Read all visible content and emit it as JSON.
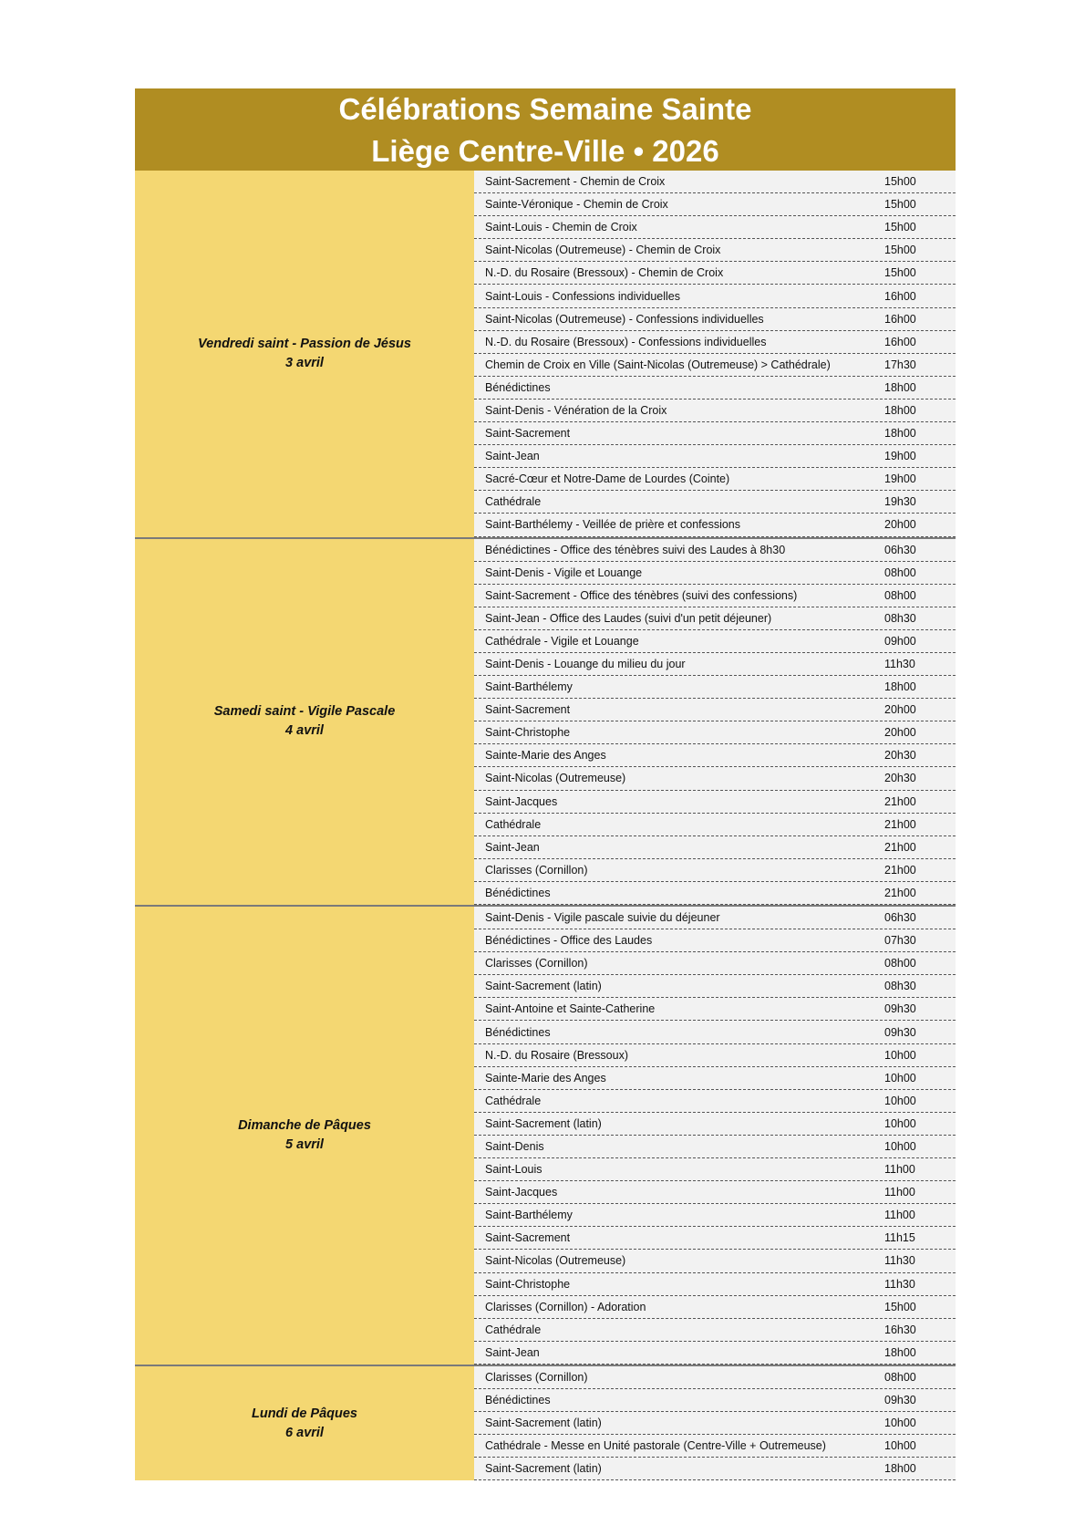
{
  "header": {
    "line1": "Célébrations Semaine Sainte",
    "line2": "Liège Centre-Ville • 2026"
  },
  "colors": {
    "header_bg": "#b08d22",
    "day_bg": "#f4d772",
    "rows_bg": "#f2f2f2"
  },
  "sections": [
    {
      "day": "Vendredi saint - Passion de Jésus",
      "date": "3 avril",
      "rows": [
        [
          "Saint-Sacrement - Chemin de Croix",
          "15h00"
        ],
        [
          "Sainte-Véronique - Chemin de Croix",
          "15h00"
        ],
        [
          "Saint-Louis - Chemin de Croix",
          "15h00"
        ],
        [
          "Saint-Nicolas (Outremeuse) - Chemin de Croix",
          "15h00"
        ],
        [
          "N.-D. du Rosaire (Bressoux) - Chemin de Croix",
          "15h00"
        ],
        [
          "Saint-Louis - Confessions individuelles",
          "16h00"
        ],
        [
          "Saint-Nicolas (Outremeuse) - Confessions individuelles",
          "16h00"
        ],
        [
          "N.-D. du Rosaire (Bressoux) - Confessions individuelles",
          "16h00"
        ],
        [
          "Chemin de Croix en Ville (Saint-Nicolas (Outremeuse) > Cathédrale)",
          "17h30"
        ],
        [
          "Bénédictines",
          "18h00"
        ],
        [
          "Saint-Denis - Vénération de la Croix",
          "18h00"
        ],
        [
          "Saint-Sacrement",
          "18h00"
        ],
        [
          "Saint-Jean",
          "19h00"
        ],
        [
          "Sacré-Cœur et Notre-Dame de Lourdes (Cointe)",
          "19h00"
        ],
        [
          "Cathédrale",
          "19h30"
        ],
        [
          "Saint-Barthélemy - Veillée de prière et confessions",
          "20h00"
        ]
      ]
    },
    {
      "day": "Samedi saint - Vigile Pascale",
      "date": "4 avril",
      "rows": [
        [
          "Bénédictines - Office des ténèbres suivi des Laudes à 8h30",
          "06h30"
        ],
        [
          "Saint-Denis - Vigile et Louange",
          "08h00"
        ],
        [
          "Saint-Sacrement - Office des ténèbres (suivi des confessions)",
          "08h00"
        ],
        [
          "Saint-Jean - Office des Laudes (suivi d'un petit déjeuner)",
          "08h30"
        ],
        [
          "Cathédrale - Vigile et Louange",
          "09h00"
        ],
        [
          "Saint-Denis - Louange du milieu du jour",
          "11h30"
        ],
        [
          "Saint-Barthélemy",
          "18h00"
        ],
        [
          "Saint-Sacrement",
          "20h00"
        ],
        [
          "Saint-Christophe",
          "20h00"
        ],
        [
          "Sainte-Marie des Anges",
          "20h30"
        ],
        [
          "Saint-Nicolas (Outremeuse)",
          "20h30"
        ],
        [
          "Saint-Jacques",
          "21h00"
        ],
        [
          "Cathédrale",
          "21h00"
        ],
        [
          "Saint-Jean",
          "21h00"
        ],
        [
          "Clarisses (Cornillon)",
          "21h00"
        ],
        [
          "Bénédictines",
          "21h00"
        ]
      ]
    },
    {
      "day": "Dimanche  de Pâques",
      "date": "5 avril",
      "rows": [
        [
          "Saint-Denis - Vigile pascale suivie du déjeuner",
          "06h30"
        ],
        [
          "Bénédictines - Office des Laudes",
          "07h30"
        ],
        [
          "Clarisses (Cornillon)",
          "08h00"
        ],
        [
          "Saint-Sacrement (latin)",
          "08h30"
        ],
        [
          "Saint-Antoine et Sainte-Catherine",
          "09h30"
        ],
        [
          "Bénédictines",
          "09h30"
        ],
        [
          "N.-D. du Rosaire (Bressoux)",
          "10h00"
        ],
        [
          "Sainte-Marie des Anges",
          "10h00"
        ],
        [
          "Cathédrale",
          "10h00"
        ],
        [
          "Saint-Sacrement (latin)",
          "10h00"
        ],
        [
          "Saint-Denis",
          "10h00"
        ],
        [
          "Saint-Louis",
          "11h00"
        ],
        [
          "Saint-Jacques",
          "11h00"
        ],
        [
          "Saint-Barthélemy",
          "11h00"
        ],
        [
          "Saint-Sacrement",
          "11h15"
        ],
        [
          "Saint-Nicolas (Outremeuse)",
          "11h30"
        ],
        [
          "Saint-Christophe",
          "11h30"
        ],
        [
          "Clarisses (Cornillon) - Adoration",
          "15h00"
        ],
        [
          "Cathédrale",
          "16h30"
        ],
        [
          "Saint-Jean",
          "18h00"
        ]
      ]
    },
    {
      "day": "Lundi de Pâques",
      "date": "6 avril",
      "rows": [
        [
          "Clarisses (Cornillon)",
          "08h00"
        ],
        [
          "Bénédictines",
          "09h30"
        ],
        [
          "Saint-Sacrement (latin)",
          "10h00"
        ],
        [
          "Cathédrale - Messe en Unité pastorale (Centre-Ville + Outremeuse)",
          "10h00"
        ],
        [
          "Saint-Sacrement (latin)",
          "18h00"
        ]
      ]
    }
  ]
}
